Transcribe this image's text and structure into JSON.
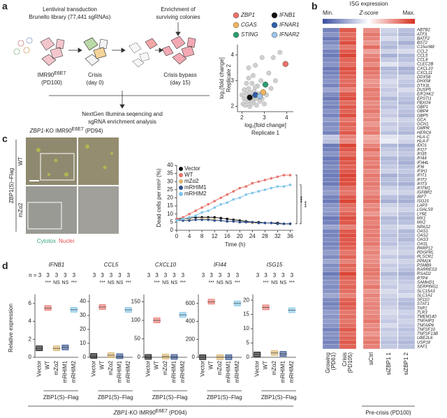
{
  "figure": {
    "a": {
      "label": "a",
      "step1": "Lentiviral transduction",
      "step1b": "Brunello library (77,441 sgRNAs)",
      "step2": "Enrichment of",
      "step2b": "surviving colonies",
      "cell": "IMR90",
      "cell_sup": "E6E7",
      "cell_pd": "(PD100)",
      "crisis": "Crisis",
      "crisis_day": "(day 0)",
      "bypass": "Crisis bypass",
      "bypass_day": "(day 15)",
      "seq1": "NextGen Illumina seqencing and",
      "seq2": "sgRNA enrichment analysis"
    },
    "b": {
      "label": "b",
      "title": "ISG expression",
      "min": "Min.",
      "zscore": "Z-score",
      "max": "Max.",
      "precrisis": "Pre-crisis (PD100)"
    },
    "c": {
      "label": "c",
      "img_title": "ZBP1",
      "img_title2": "-KO IMR90",
      "img_sup": "E6E7",
      "img_pd": " (PD94)",
      "row1": "WT",
      "row2": "mZα2",
      "group": "ZBP1(S)–Flag",
      "stain1": "Cytotox",
      "stain2": "Nuclei"
    },
    "d": {
      "label": "d",
      "ylabel": "Relative expression",
      "footer1": "ZBP1",
      "footer2": "-KO IMR90",
      "footer_sup": "E6E7",
      "footer3": " (PD94)"
    }
  },
  "chart_data": [
    {
      "type": "scatter",
      "xlabel": "log₂[fold change]",
      "xlabel2": "Replicate 1",
      "ylabel": "log₂[fold change]",
      "ylabel2": "Replicate 2",
      "xlim": [
        1.8,
        4.3
      ],
      "ylim": [
        1.8,
        4.4
      ],
      "xticks": [
        2,
        3,
        4
      ],
      "yticks": [
        2,
        3,
        4
      ],
      "series": [
        {
          "color": "#d0d0d0",
          "x": [
            2.05,
            2.1,
            2.15,
            2.2,
            2.25,
            2.3,
            2.35,
            2.4,
            2.45,
            2.5,
            2.55,
            2.6,
            2.65,
            2.7,
            2.75,
            2.8,
            2.2,
            2.3,
            2.1,
            2.5,
            2.4,
            2.6,
            2.9,
            2.85,
            3.0,
            3.1,
            3.3,
            3.5,
            3.2,
            2.3,
            2.6,
            2.9,
            3.7,
            3.4,
            2.0,
            2.35,
            2.55,
            2.45,
            2.7,
            2.2
          ],
          "values": [
            2.1,
            2.3,
            2.05,
            2.5,
            2.2,
            2.7,
            2.0,
            2.4,
            2.9,
            2.15,
            2.6,
            2.3,
            2.05,
            2.8,
            2.5,
            2.2,
            2.9,
            3.1,
            2.65,
            3.2,
            2.1,
            2.75,
            2.3,
            3.0,
            2.1,
            2.45,
            2.7,
            3.0,
            3.3,
            3.5,
            3.6,
            3.9,
            4.1,
            3.9,
            2.45,
            2.55,
            2.4,
            2.25,
            2.35,
            2.3
          ]
        },
        {
          "name": "ZBP1",
          "color": "#e8736b",
          "x": [
            3.95
          ],
          "values": [
            3.65
          ]
        },
        {
          "name": "CGAS",
          "color": "#f0b35e",
          "x": [
            2.95
          ],
          "values": [
            2.55
          ]
        },
        {
          "name": "STING",
          "color": "#2a9d6e",
          "x": [
            3.05
          ],
          "values": [
            2.85
          ]
        },
        {
          "name": "IFNB1",
          "color": "#111111",
          "x": [
            2.35
          ],
          "values": [
            2.35
          ]
        },
        {
          "name": "IFNAR1",
          "color": "#2e5fa8",
          "x": [
            2.6
          ],
          "values": [
            2.45
          ]
        },
        {
          "name": "IFNAR2",
          "color": "#9cc3e8",
          "x": [
            2.8
          ],
          "values": [
            2.4
          ]
        }
      ]
    },
    {
      "type": "line",
      "xlabel": "Time (h)",
      "ylabel": "Dead cells per mm² (%)",
      "x": [
        0,
        2,
        4,
        6,
        8,
        10,
        12,
        14,
        16,
        18,
        20,
        22,
        24,
        26,
        28,
        30,
        32,
        34,
        36
      ],
      "xlim": [
        0,
        37
      ],
      "ylim": [
        0,
        40
      ],
      "xticks": [
        0,
        4,
        8,
        12,
        16,
        20,
        24,
        28,
        32,
        36
      ],
      "yticks": [
        0,
        5,
        10,
        15,
        20,
        25,
        30,
        35,
        40
      ],
      "significance": [
        "***",
        "***"
      ],
      "series": [
        {
          "name": "Vector",
          "color": "#111111",
          "values": [
            7,
            7,
            7.5,
            8,
            8,
            8,
            8,
            7.5,
            7,
            6.5,
            6,
            5.5,
            5,
            5,
            4.5,
            4.5,
            4.5,
            4,
            4
          ]
        },
        {
          "name": "WT",
          "color": "#e8736b",
          "values": [
            7,
            8,
            10,
            12,
            14,
            16,
            18,
            20,
            22,
            24,
            26,
            27,
            29,
            30,
            31,
            32,
            33,
            34,
            34
          ]
        },
        {
          "name": "mZα2",
          "color": "#d9b46a",
          "values": [
            6,
            6,
            6.5,
            6.5,
            7,
            7,
            6.5,
            6,
            5.5,
            5.5,
            5,
            5,
            4.5,
            4.5,
            4.5,
            4.5,
            4,
            4,
            4
          ]
        },
        {
          "name": "mRHIM1",
          "color": "#2e4f8f",
          "values": [
            6,
            6,
            6,
            6.5,
            6.5,
            6.5,
            6,
            6,
            5.5,
            5.5,
            5,
            5,
            5,
            4.5,
            4.5,
            4.5,
            4,
            4,
            4
          ]
        },
        {
          "name": "mRHIM2",
          "color": "#7fc4e8",
          "values": [
            6,
            7,
            8,
            9,
            11,
            12,
            14,
            16,
            17,
            19,
            20,
            22,
            23,
            24,
            25,
            26,
            27,
            27,
            28
          ]
        }
      ]
    },
    {
      "type": "dot",
      "title": "IFNB1",
      "group": "ZBP1(S)–Flag",
      "categories": [
        "Vector",
        "WT",
        "mZα2",
        "mRHIM1",
        "mRHIM2"
      ],
      "colors": [
        "#111111",
        "#e8736b",
        "#d9b46a",
        "#2e4f8f",
        "#7fc4e8"
      ],
      "values": [
        1,
        5.5,
        1,
        1.1,
        5.3
      ],
      "ylim": [
        0,
        7
      ],
      "yticks": [
        0,
        2,
        4,
        6
      ],
      "n_labels": [
        "n = 3",
        "3",
        "3",
        "3",
        "3"
      ],
      "significance": [
        "***",
        "NS",
        "NS",
        "***"
      ]
    },
    {
      "type": "dot",
      "title": "CCL5",
      "group": "ZBP1(S)–Flag",
      "categories": [
        "Vector",
        "WT",
        "mZα2",
        "mRHIM1",
        "mRHIM2"
      ],
      "colors": [
        "#111111",
        "#e8736b",
        "#d9b46a",
        "#2e4f8f",
        "#7fc4e8"
      ],
      "values": [
        1,
        36,
        1.5,
        0.8,
        34
      ],
      "ylim": [
        0,
        45
      ],
      "yticks": [
        0,
        10,
        20,
        30,
        40
      ],
      "n_labels": [
        "3",
        "3",
        "3",
        "3",
        "3"
      ],
      "significance": [
        "***",
        "NS",
        "NS",
        "***"
      ]
    },
    {
      "type": "dot",
      "title": "CXCL10",
      "group": "ZBP1(S)–Flag",
      "categories": [
        "Vector",
        "WT",
        "mZα2",
        "mRHIM1",
        "mRHIM2"
      ],
      "colors": [
        "#111111",
        "#e8736b",
        "#d9b46a",
        "#2e4f8f",
        "#7fc4e8"
      ],
      "values": [
        1,
        100,
        2,
        1,
        115
      ],
      "ylim": [
        0,
        170
      ],
      "yticks": [
        0,
        50,
        100,
        150
      ],
      "n_labels": [
        "3",
        "3",
        "3",
        "3",
        "3"
      ],
      "significance": [
        "***",
        "NS",
        "NS",
        "***"
      ]
    },
    {
      "type": "dot",
      "title": "IFI44",
      "group": "ZBP1(S)–Flag",
      "categories": [
        "Vector",
        "WT",
        "mZα2",
        "mRHIM1",
        "mRHIM2"
      ],
      "colors": [
        "#111111",
        "#e8736b",
        "#d9b46a",
        "#2e4f8f",
        "#7fc4e8"
      ],
      "values": [
        1,
        620,
        1,
        1,
        600
      ],
      "ylim": [
        0,
        700
      ],
      "yticks": [
        0,
        200,
        400,
        600
      ],
      "n_labels": [
        "3",
        "3",
        "3",
        "3",
        "3"
      ],
      "significance": [
        "***",
        "NS",
        "NS",
        "***"
      ]
    },
    {
      "type": "dot",
      "title": "ISG15",
      "group": "ZBP1(S)–Flag",
      "categories": [
        "Vector",
        "WT",
        "mZα2",
        "mRHIM1",
        "mRHIM2"
      ],
      "colors": [
        "#111111",
        "#e8736b",
        "#d9b46a",
        "#2e4f8f",
        "#7fc4e8"
      ],
      "values": [
        1,
        17.5,
        1.5,
        1.2,
        16.5
      ],
      "ylim": [
        0,
        22
      ],
      "yticks": [
        0,
        5,
        10,
        15,
        20
      ],
      "n_labels": [
        "3",
        "3",
        "3",
        "3",
        "3"
      ],
      "significance": [
        "***",
        "NS",
        "NS",
        "***"
      ]
    },
    {
      "type": "heatmap",
      "zlim": [
        -2,
        2
      ],
      "low_color": "#3b4fa0",
      "high_color": "#d7301f",
      "columns": [
        [
          "Growing",
          "(PD61)"
        ],
        [
          "Crisis",
          "(PD105)"
        ],
        [
          "siCtrl"
        ],
        [
          "siZBP1 1"
        ],
        [
          "siZBP1 2"
        ]
      ],
      "categories": [
        "ABTB2",
        "ATF3",
        "BATF2",
        "BST2",
        "C15orf48",
        "CCL2",
        "CCL5",
        "CCL8",
        "CLEC2B",
        "CXCL10",
        "CXCL11",
        "DDX58",
        "DHX58",
        "DTX3L",
        "DUSP5",
        "EIF2AK2",
        "EPSTI1",
        "FBXO6",
        "GBP1",
        "GBP4",
        "GBP5",
        "GCA",
        "GCH1",
        "GMPR",
        "HERC6",
        "HLA-C",
        "HLA-F",
        "IDO1",
        "IFI27",
        "IFI35",
        "IFI44",
        "IFI44L",
        "IFI6",
        "IFIH1",
        "IFIT1",
        "IFIT2",
        "IFIT3",
        "IFITM1",
        "IGFBP2",
        "IRF7",
        "ISG15",
        "LAP3",
        "LGALS9",
        "LY6E",
        "MX1",
        "MX2",
        "NPAS2",
        "OAS1",
        "OAS2",
        "OAS3",
        "OASL",
        "PARP12",
        "PDGFRL",
        "PLSCR1",
        "PPM1K",
        "PSMB9",
        "RARRES3",
        "RSAD2",
        "RTP4",
        "SAMHD1",
        "SERPING1",
        "SLC15A3",
        "SLC1A1",
        "SP110",
        "STAT1",
        "TAP1",
        "TLR3",
        "TMEM140",
        "TNFAIP3",
        "TNFAIP6",
        "TNFSF10",
        "TNFSF13B",
        "UBE2L6",
        "USP18",
        "XAF1"
      ],
      "values": [
        [
          -1.4,
          1.6,
          1.1,
          -0.5,
          -0.7
        ],
        [
          -1.2,
          1.4,
          1.3,
          -0.6,
          -0.8
        ],
        [
          -1.5,
          1.5,
          1.2,
          -0.4,
          -0.6
        ],
        [
          -1.3,
          1.7,
          1.0,
          -0.7,
          -0.9
        ],
        [
          -1.1,
          1.3,
          1.4,
          -0.8,
          -0.6
        ],
        [
          -1.4,
          1.6,
          0.9,
          -0.5,
          -0.4
        ],
        [
          -1.5,
          1.8,
          1.2,
          -0.9,
          -0.8
        ],
        [
          -1.3,
          1.5,
          1.3,
          -0.6,
          -0.7
        ],
        [
          -1.2,
          1.4,
          1.1,
          -0.3,
          -0.5
        ],
        [
          -1.5,
          1.7,
          1.4,
          -0.8,
          -0.9
        ],
        [
          -1.4,
          1.6,
          1.3,
          -0.7,
          -0.8
        ],
        [
          -1.3,
          1.5,
          1.2,
          -0.6,
          -0.5
        ],
        [
          -1.2,
          1.4,
          1.0,
          -0.4,
          -0.6
        ],
        [
          -1.4,
          1.5,
          1.1,
          -0.5,
          -0.7
        ],
        [
          -1.0,
          1.2,
          1.3,
          -0.6,
          -0.4
        ],
        [
          -1.3,
          1.6,
          1.2,
          -0.5,
          -0.6
        ],
        [
          -1.5,
          1.7,
          1.3,
          -0.8,
          -0.7
        ],
        [
          -1.3,
          1.4,
          1.1,
          -0.6,
          -0.8
        ],
        [
          -1.4,
          1.6,
          1.2,
          -0.7,
          -0.6
        ],
        [
          -1.2,
          1.5,
          1.3,
          -0.5,
          -0.7
        ],
        [
          -1.4,
          1.7,
          1.1,
          -0.6,
          -0.8
        ],
        [
          -1.1,
          1.3,
          1.2,
          -0.4,
          -0.5
        ],
        [
          -1.3,
          1.5,
          1.0,
          -0.6,
          -0.6
        ],
        [
          -1.2,
          1.4,
          1.2,
          -0.5,
          -0.7
        ],
        [
          -1.4,
          1.6,
          1.3,
          -0.7,
          -0.8
        ],
        [
          -0.6,
          1.2,
          0.8,
          -0.3,
          -0.4
        ],
        [
          -0.7,
          1.1,
          0.9,
          -0.2,
          -0.5
        ],
        [
          -1.5,
          1.8,
          1.2,
          -0.8,
          -0.9
        ],
        [
          -1.4,
          1.6,
          1.4,
          -0.6,
          -0.7
        ],
        [
          -1.2,
          1.4,
          1.1,
          -0.5,
          -0.6
        ],
        [
          -1.5,
          1.7,
          1.3,
          -0.8,
          -0.8
        ],
        [
          -1.4,
          1.6,
          1.2,
          -0.7,
          -0.9
        ],
        [
          -1.3,
          1.5,
          1.3,
          -0.6,
          -0.7
        ],
        [
          -1.4,
          1.6,
          1.1,
          -0.5,
          -0.6
        ],
        [
          -1.5,
          1.8,
          1.3,
          -0.9,
          -0.8
        ],
        [
          -1.4,
          1.7,
          1.2,
          -0.7,
          -0.7
        ],
        [
          -1.5,
          1.7,
          1.3,
          -0.8,
          -0.9
        ],
        [
          -1.2,
          1.4,
          1.2,
          -0.5,
          -0.6
        ],
        [
          -1.1,
          1.3,
          1.1,
          -0.4,
          -0.5
        ],
        [
          -1.4,
          1.6,
          1.3,
          -0.7,
          -0.8
        ],
        [
          -1.5,
          1.8,
          1.4,
          -0.9,
          -0.9
        ],
        [
          -1.2,
          1.4,
          1.1,
          -0.5,
          -0.6
        ],
        [
          -1.1,
          1.3,
          1.2,
          -0.4,
          -0.5
        ],
        [
          -1.2,
          1.5,
          1.0,
          -0.5,
          -0.7
        ],
        [
          -1.5,
          1.7,
          1.3,
          -0.8,
          -0.8
        ],
        [
          -1.4,
          1.6,
          1.2,
          -0.7,
          -0.7
        ],
        [
          -1.0,
          1.2,
          1.3,
          -0.5,
          -0.4
        ],
        [
          -1.4,
          1.6,
          1.2,
          -0.6,
          -0.8
        ],
        [
          -1.4,
          1.7,
          1.3,
          -0.7,
          -0.7
        ],
        [
          -1.3,
          1.6,
          1.2,
          -0.6,
          -0.8
        ],
        [
          -1.4,
          1.6,
          1.3,
          -0.7,
          -0.6
        ],
        [
          -1.3,
          1.5,
          1.1,
          -0.5,
          -0.6
        ],
        [
          -1.1,
          1.3,
          1.2,
          -0.4,
          -0.5
        ],
        [
          -1.3,
          1.5,
          1.1,
          -0.6,
          -0.7
        ],
        [
          -1.0,
          1.2,
          1.1,
          -0.4,
          -0.5
        ],
        [
          -1.3,
          1.5,
          1.2,
          -0.6,
          -0.6
        ],
        [
          -1.2,
          1.4,
          1.3,
          -0.5,
          -0.7
        ],
        [
          -1.5,
          1.8,
          1.3,
          -0.8,
          -0.9
        ],
        [
          -1.3,
          1.5,
          1.2,
          -0.6,
          -0.7
        ],
        [
          -1.2,
          1.4,
          1.1,
          -0.5,
          -0.6
        ],
        [
          -1.3,
          1.5,
          1.3,
          -0.6,
          -0.5
        ],
        [
          -1.2,
          1.4,
          1.0,
          -0.4,
          -0.6
        ],
        [
          -1.0,
          1.2,
          1.2,
          -0.5,
          -0.4
        ],
        [
          -1.3,
          1.5,
          1.1,
          -0.6,
          -0.7
        ],
        [
          -1.4,
          1.6,
          1.2,
          -0.6,
          -0.8
        ],
        [
          -1.3,
          1.5,
          1.2,
          -0.5,
          -0.7
        ],
        [
          -1.1,
          1.3,
          1.1,
          -0.4,
          -0.5
        ],
        [
          -1.2,
          1.4,
          1.2,
          -0.5,
          -0.6
        ],
        [
          -1.1,
          1.3,
          1.3,
          -0.6,
          -0.5
        ],
        [
          -1.2,
          1.4,
          1.1,
          -0.4,
          -0.6
        ],
        [
          -1.4,
          1.6,
          1.2,
          -0.6,
          -0.7
        ],
        [
          -1.2,
          1.4,
          1.0,
          -0.5,
          -0.6
        ],
        [
          -1.3,
          1.5,
          1.2,
          -0.6,
          -0.7
        ],
        [
          -1.4,
          1.6,
          1.3,
          -0.7,
          -0.8
        ],
        [
          -1.3,
          1.5,
          1.2,
          -0.6,
          -0.7
        ]
      ]
    }
  ]
}
